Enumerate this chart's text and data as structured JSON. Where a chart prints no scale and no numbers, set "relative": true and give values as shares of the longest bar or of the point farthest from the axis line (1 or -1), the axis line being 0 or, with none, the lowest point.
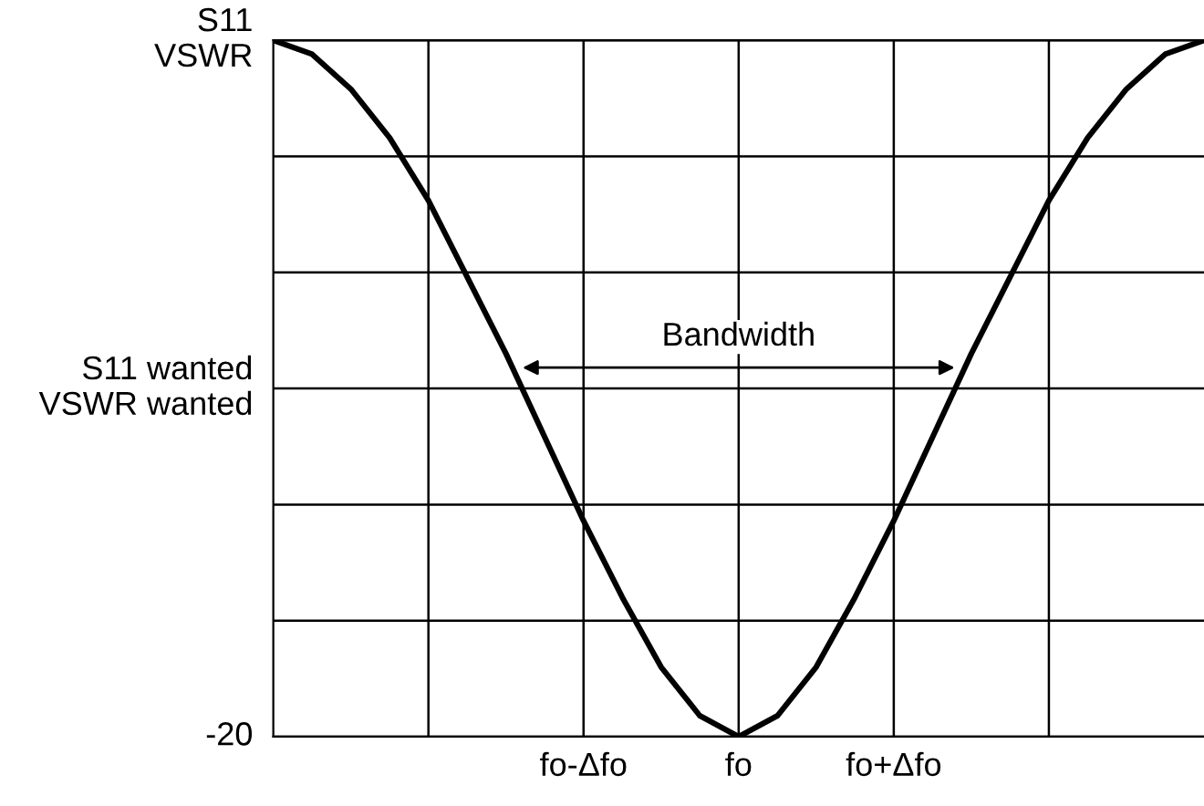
{
  "chart_data": {
    "type": "line",
    "relative": true,
    "categories": [
      null,
      null,
      null,
      null,
      null,
      null,
      null,
      null,
      "fo-Δfo",
      null,
      null,
      null,
      "fo",
      null,
      null,
      null,
      "fo+Δfo",
      null,
      null,
      null,
      null,
      null,
      null,
      null,
      null
    ],
    "series": [
      {
        "color": "#000000",
        "values": [
          1,
          0.98,
          0.93,
          0.86,
          0.77,
          0.66,
          0.55,
          0.43,
          0.31,
          0.2,
          0.1,
          0.03,
          0,
          0.03,
          0.1,
          0.2,
          0.31,
          0.43,
          0.55,
          0.66,
          0.77,
          0.86,
          0.93,
          0.98,
          1
        ]
      }
    ],
    "annotations": [
      "S11\nVSWR",
      "S11 wanted\nVSWR wanted",
      "-20",
      "Bandwidth"
    ],
    "grid": true,
    "marker": "none",
    "line_style": "solid"
  }
}
